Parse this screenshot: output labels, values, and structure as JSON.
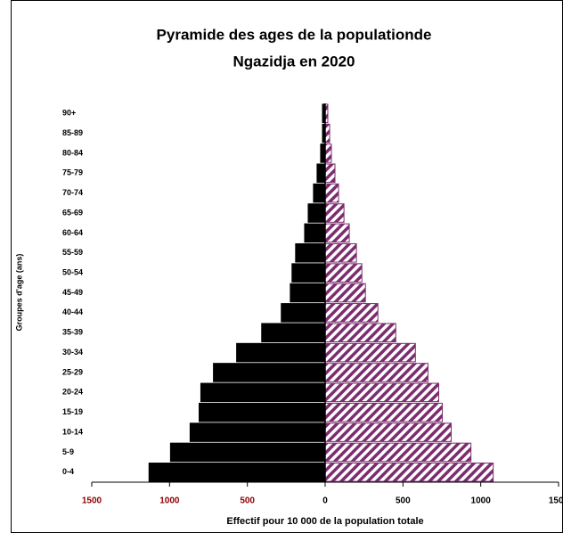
{
  "chart_data": {
    "type": "pyramid",
    "title": [
      "Pyramide des ages de la populationde",
      "Ngazidja en 2020"
    ],
    "x_label": "Effectif pour 10 000 de la population totale",
    "y_label": "Groupes d'age (ans)",
    "categories": [
      "90+",
      "85-89",
      "80-84",
      "75-79",
      "70-74",
      "65-69",
      "60-64",
      "55-59",
      "50-54",
      "45-49",
      "40-44",
      "35-39",
      "30-34",
      "25-29",
      "20-24",
      "15-19",
      "10-14",
      "5-9",
      "0-4"
    ],
    "series": [
      {
        "color": "#000000",
        "pattern": "solid",
        "values": [
          -17,
          -17,
          -29,
          -52,
          -75,
          -109,
          -132,
          -190,
          -213,
          -224,
          -282,
          -408,
          -569,
          -718,
          -799,
          -810,
          -868,
          -994,
          -1132
        ]
      },
      {
        "color": "#7b2d6e",
        "pattern": "hatch",
        "values": [
          17,
          29,
          40,
          63,
          86,
          121,
          155,
          201,
          236,
          259,
          339,
          454,
          580,
          661,
          730,
          753,
          810,
          937,
          1080
        ]
      }
    ],
    "xlim": [
      -1500,
      1500
    ],
    "xticks": [
      {
        "value": -1500,
        "label": "1500"
      },
      {
        "value": -1000,
        "label": "1000"
      },
      {
        "value": -500,
        "label": "500"
      },
      0,
      500,
      1000,
      1500
    ],
    "negative_tick_color": "#8b0000"
  }
}
